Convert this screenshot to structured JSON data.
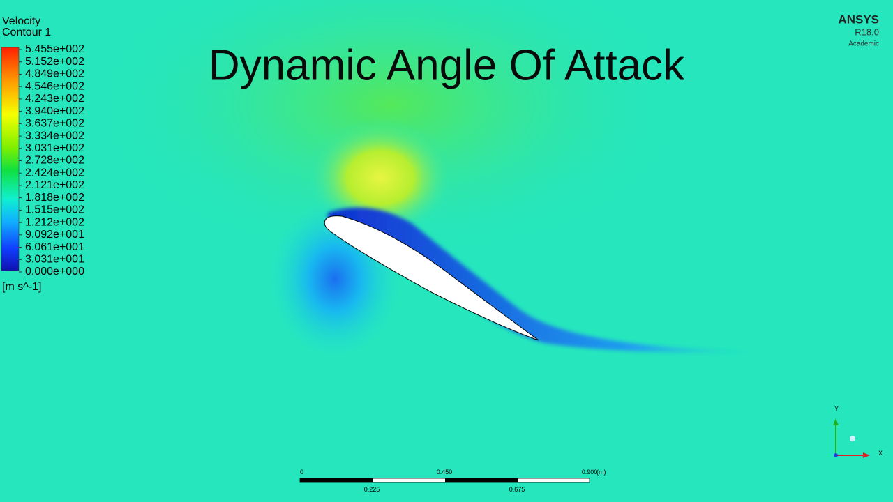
{
  "legend": {
    "title": "Velocity",
    "subtitle": "Contour 1",
    "labels": [
      "5.455e+002",
      "5.152e+002",
      "4.849e+002",
      "4.546e+002",
      "4.243e+002",
      "3.940e+002",
      "3.637e+002",
      "3.334e+002",
      "3.031e+002",
      "2.728e+002",
      "2.424e+002",
      "2.121e+002",
      "1.818e+002",
      "1.515e+002",
      "1.212e+002",
      "9.092e+001",
      "6.061e+001",
      "3.031e+001",
      "0.000e+000"
    ],
    "unit": "[m s^-1]"
  },
  "title": "Dynamic Angle Of Attack",
  "logo": {
    "name": "ANSYS",
    "version": "R18.0",
    "edition": "Academic"
  },
  "scale_bar": {
    "top_labels": [
      "0",
      "0.450",
      "0.900"
    ],
    "unit": "(m)",
    "bottom_labels": [
      "0.225",
      "0.675"
    ]
  },
  "axes": {
    "y": "Y",
    "x": "X"
  }
}
